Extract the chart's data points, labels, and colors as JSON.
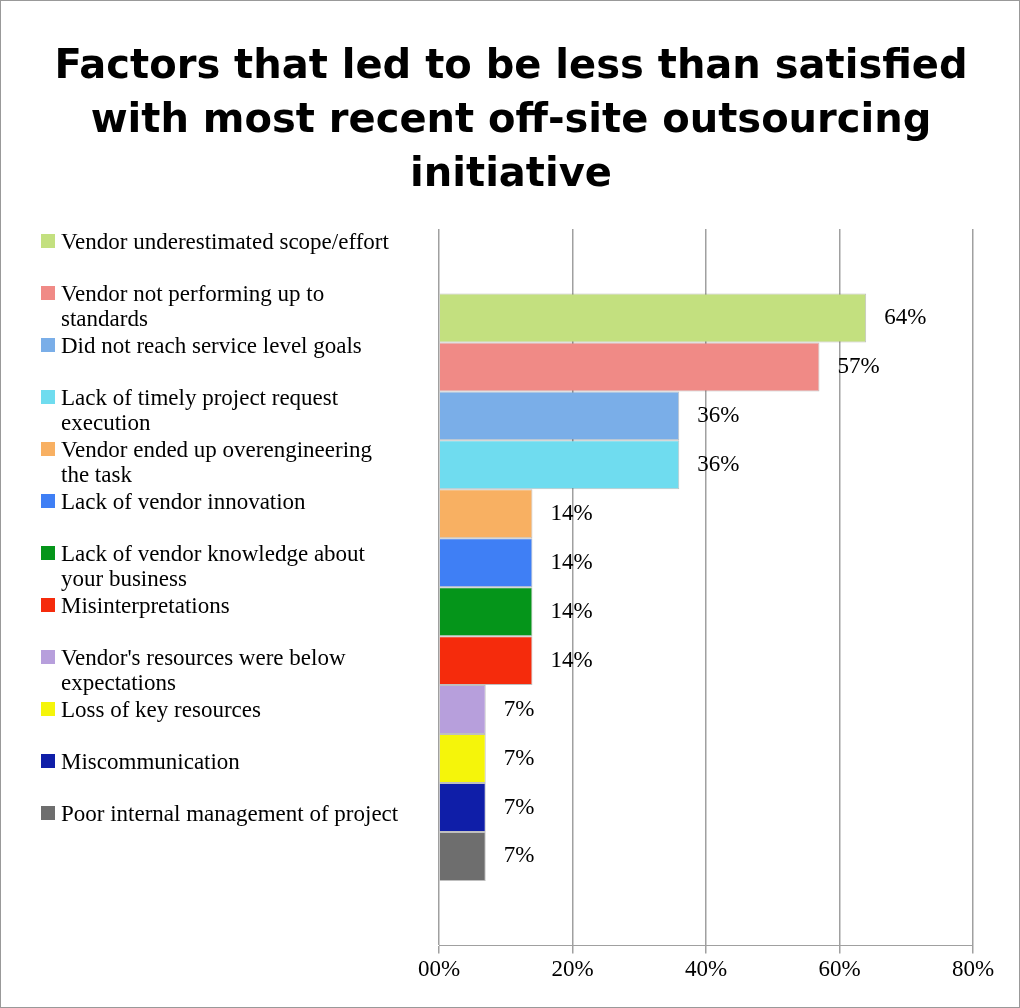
{
  "chart_data": {
    "type": "bar",
    "orientation": "horizontal",
    "title": "Factors that led to be less than satisfied with most recent off-site outsourcing initiative",
    "categories": [
      null
    ],
    "series": [
      {
        "name": "Vendor underestimated scope/effort",
        "color": "#c3e07f",
        "values": [
          64
        ],
        "value_labels": [
          "64%"
        ]
      },
      {
        "name": "Vendor not performing up to standards",
        "color": "#f08a86",
        "values": [
          57
        ],
        "value_labels": [
          "57%"
        ]
      },
      {
        "name": "Did not reach service level goals",
        "color": "#7aaee8",
        "values": [
          36
        ],
        "value_labels": [
          "36%"
        ]
      },
      {
        "name": "Lack of timely project request execution",
        "color": "#6fdcef",
        "values": [
          36
        ],
        "value_labels": [
          "36%"
        ]
      },
      {
        "name": "Vendor ended up overengineering the task",
        "color": "#f8b062",
        "values": [
          14
        ],
        "value_labels": [
          "14%"
        ]
      },
      {
        "name": "Lack of vendor innovation",
        "color": "#3f7ff5",
        "values": [
          14
        ],
        "value_labels": [
          "14%"
        ]
      },
      {
        "name": "Lack of vendor knowledge about your business",
        "color": "#05951a",
        "values": [
          14
        ],
        "value_labels": [
          "14%"
        ]
      },
      {
        "name": "Misinterpretations",
        "color": "#f52b0c",
        "values": [
          14
        ],
        "value_labels": [
          "14%"
        ]
      },
      {
        "name": "Vendor's resources were below expectations",
        "color": "#b79fdc",
        "values": [
          7
        ],
        "value_labels": [
          "7%"
        ]
      },
      {
        "name": "Loss of key resources",
        "color": "#f5f50a",
        "values": [
          7
        ],
        "value_labels": [
          "7%"
        ]
      },
      {
        "name": "Miscommunication",
        "color": "#0f1ea8",
        "values": [
          7
        ],
        "value_labels": [
          "7%"
        ]
      },
      {
        "name": "Poor internal management of project",
        "color": "#6e6e6e",
        "values": [
          7
        ],
        "value_labels": [
          "7%"
        ]
      }
    ],
    "xlim": [
      0,
      80
    ],
    "xticks": [
      {
        "value": 0,
        "label": "00%"
      },
      {
        "value": 20,
        "label": "20%"
      },
      {
        "value": 40,
        "label": "40%"
      },
      {
        "value": 60,
        "label": "60%"
      },
      {
        "value": 80,
        "label": "80%"
      }
    ],
    "grid": "x",
    "legend": "left"
  }
}
